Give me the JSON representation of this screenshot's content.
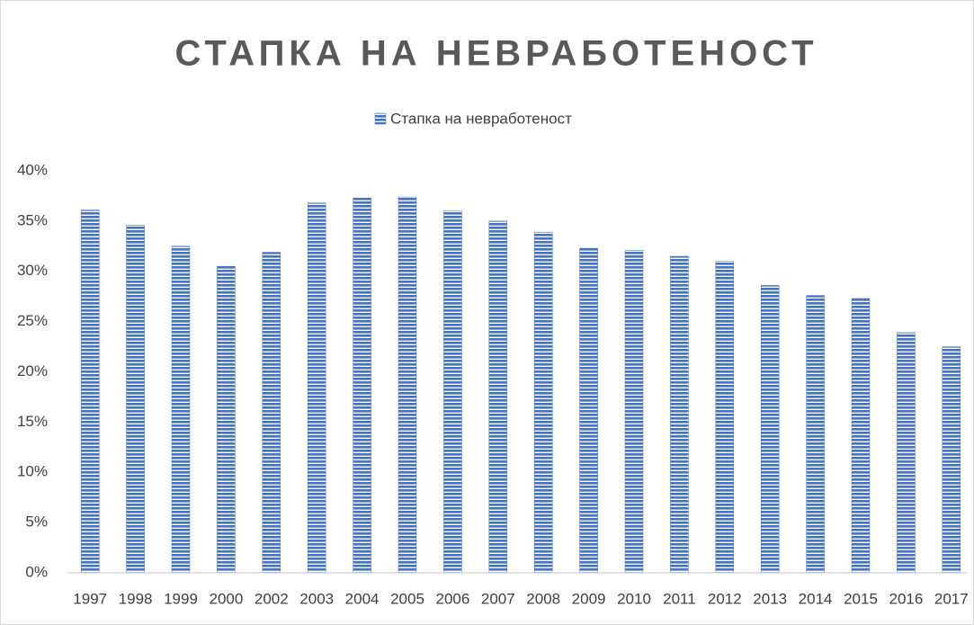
{
  "chart_data": {
    "type": "bar",
    "title": "СТАПКА НА НЕВРАБОТЕНОСТ",
    "categories": [
      "1997",
      "1998",
      "1999",
      "2000",
      "2002",
      "2003",
      "2004",
      "2005",
      "2006",
      "2007",
      "2008",
      "2009",
      "2010",
      "2011",
      "2012",
      "2013",
      "2014",
      "2015",
      "2016",
      "2017"
    ],
    "series": [
      {
        "name": "Стапка на невработеност",
        "color": "#4472c4",
        "values": [
          36.1,
          34.6,
          32.5,
          30.5,
          31.9,
          36.8,
          37.3,
          37.4,
          36.0,
          35.0,
          33.9,
          32.3,
          32.1,
          31.5,
          31.0,
          28.6,
          27.6,
          27.3,
          23.9,
          22.5
        ]
      }
    ],
    "ylim": [
      0,
      40
    ],
    "yticks": [
      {
        "value": 0,
        "label": "0%"
      },
      {
        "value": 5,
        "label": "5%"
      },
      {
        "value": 10,
        "label": "10%"
      },
      {
        "value": 15,
        "label": "15%"
      },
      {
        "value": 20,
        "label": "20%"
      },
      {
        "value": 25,
        "label": "25%"
      },
      {
        "value": 30,
        "label": "30%"
      },
      {
        "value": 35,
        "label": "35%"
      },
      {
        "value": 40,
        "label": "40%"
      }
    ],
    "grid": false,
    "legend": "top"
  }
}
